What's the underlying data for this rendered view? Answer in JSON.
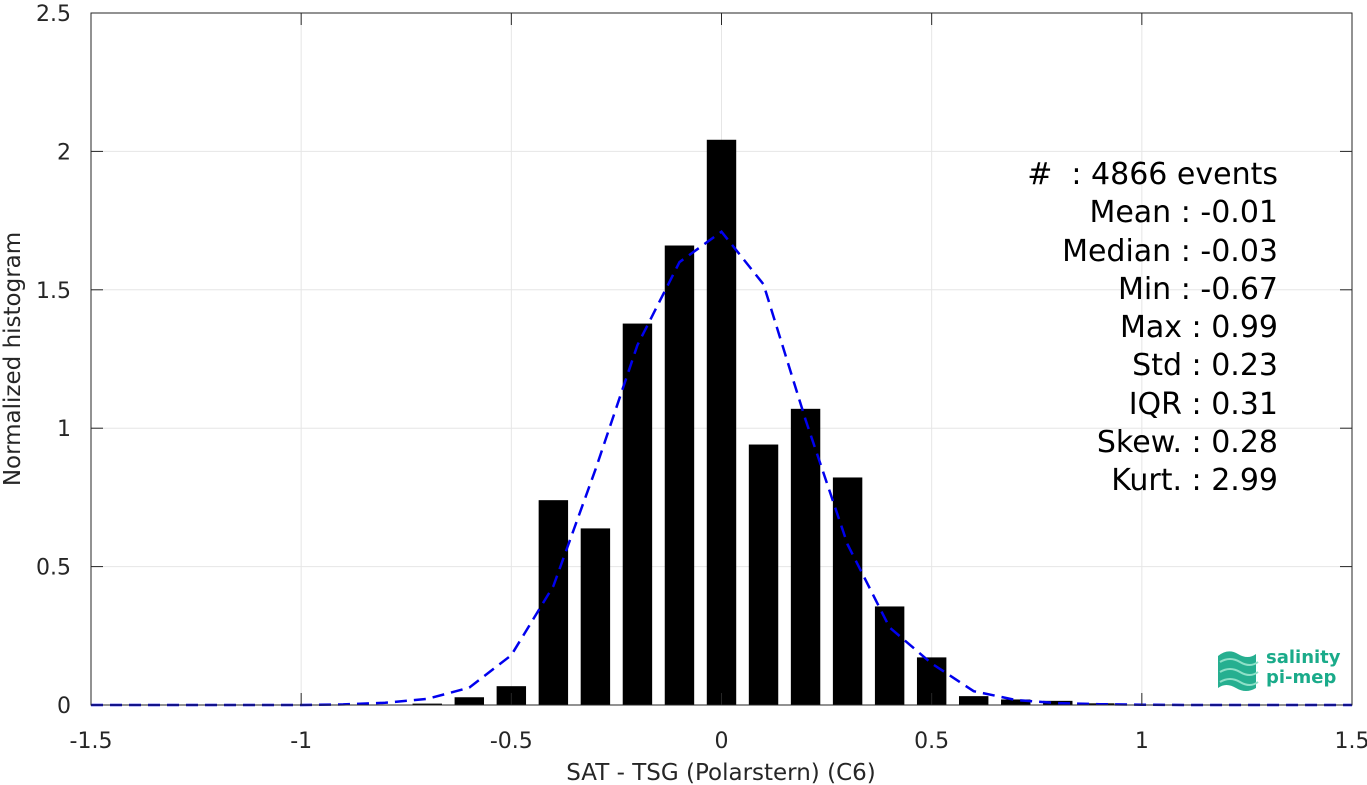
{
  "chart_data": {
    "type": "bar",
    "xlabel": "SAT - TSG (Polarstern) (C6)",
    "ylabel": "Normalized histogram",
    "xlim": [
      -1.5,
      1.5
    ],
    "ylim": [
      0,
      2.5
    ],
    "grid": true,
    "x_ticks": [
      "-1.5",
      "-1",
      "-0.5",
      "0",
      "0.5",
      "1",
      "1.5"
    ],
    "y_ticks": [
      "0",
      "0.5",
      "1",
      "1.5",
      "2",
      "2.5"
    ],
    "bar_width": 0.07,
    "series": [
      {
        "x": [
          -0.7,
          -0.6,
          -0.5,
          -0.4,
          -0.3,
          -0.2,
          -0.1,
          0.0,
          0.1,
          0.2,
          0.3,
          0.4,
          0.5,
          0.6,
          0.7,
          0.8,
          0.9
        ],
        "values": [
          0.005,
          0.028,
          0.068,
          0.74,
          0.638,
          1.378,
          1.66,
          2.042,
          0.941,
          1.07,
          0.822,
          0.356,
          0.172,
          0.032,
          0.02,
          0.015,
          0.006
        ]
      },
      {
        "style": "dashed",
        "color": "#0000ee",
        "x": [
          -1.5,
          -1.4,
          -1.3,
          -1.2,
          -1.1,
          -1.0,
          -0.9,
          -0.8,
          -0.7,
          -0.6,
          -0.5,
          -0.4,
          -0.3,
          -0.2,
          -0.1,
          0.0,
          0.1,
          0.2,
          0.3,
          0.4,
          0.5,
          0.6,
          0.7,
          0.8,
          0.9,
          1.0,
          1.1,
          1.2,
          1.3,
          1.4,
          1.5
        ],
        "values": [
          0,
          0,
          0,
          0,
          0,
          0,
          0.002,
          0.008,
          0.022,
          0.063,
          0.18,
          0.43,
          0.85,
          1.3,
          1.6,
          1.71,
          1.52,
          1.03,
          0.58,
          0.28,
          0.15,
          0.05,
          0.018,
          0.007,
          0.003,
          0.001,
          0,
          0,
          0,
          0,
          0
        ]
      }
    ],
    "stats": [
      "#  : 4866 events",
      "Mean : -0.01",
      "Median : -0.03",
      "Min : -0.67",
      "Max : 0.99",
      "Std : 0.23",
      "IQR : 0.31",
      "Skew. : 0.28",
      "Kurt. : 2.99"
    ]
  },
  "logo": {
    "line1": "salinity",
    "line2": "pi-mep",
    "color": "#1aab8a"
  }
}
